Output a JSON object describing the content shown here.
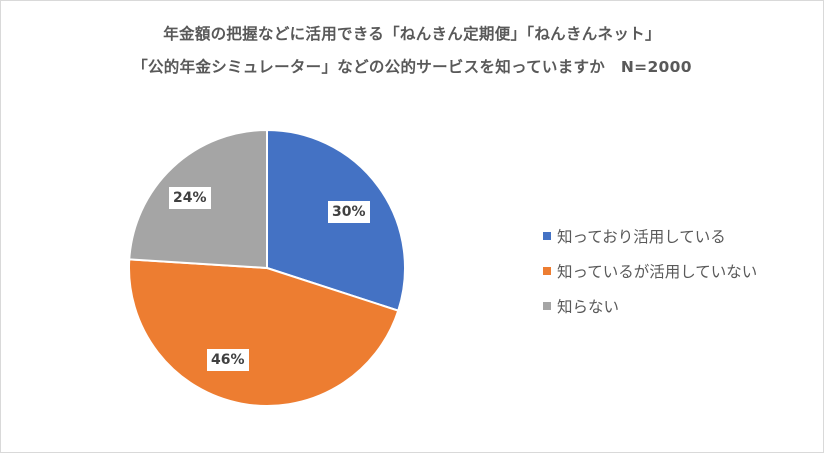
{
  "chart": {
    "title_line1": "年金額の把握などに活用できる「ねんきん定期便」「ねんきんネット」",
    "title_line2": "「公的年金シミュレーター」などの公的サービスを知っていますか　N=2000"
  },
  "labels": {
    "s0": "30%",
    "s1": "46%",
    "s2": "24%"
  },
  "legend": [
    {
      "label": "知っており活用している",
      "color": "#4472C4"
    },
    {
      "label": "知っているが活用していない",
      "color": "#ED7D31"
    },
    {
      "label": "知らない",
      "color": "#A5A5A5"
    }
  ],
  "chart_data": {
    "type": "pie",
    "title": "年金額の把握などに活用できる「ねんきん定期便」「ねんきんネット」「公的年金シミュレーター」などの公的サービスを知っていますか　N=2000",
    "categories": [
      "知っており活用している",
      "知っているが活用していない",
      "知らない"
    ],
    "values": [
      30,
      46,
      24
    ],
    "unit": "%",
    "colors": [
      "#4472C4",
      "#ED7D31",
      "#A5A5A5"
    ],
    "start_angle_deg": 0,
    "direction": "clockwise",
    "n": 2000,
    "legend_position": "right",
    "data_labels": [
      "30%",
      "46%",
      "24%"
    ]
  }
}
